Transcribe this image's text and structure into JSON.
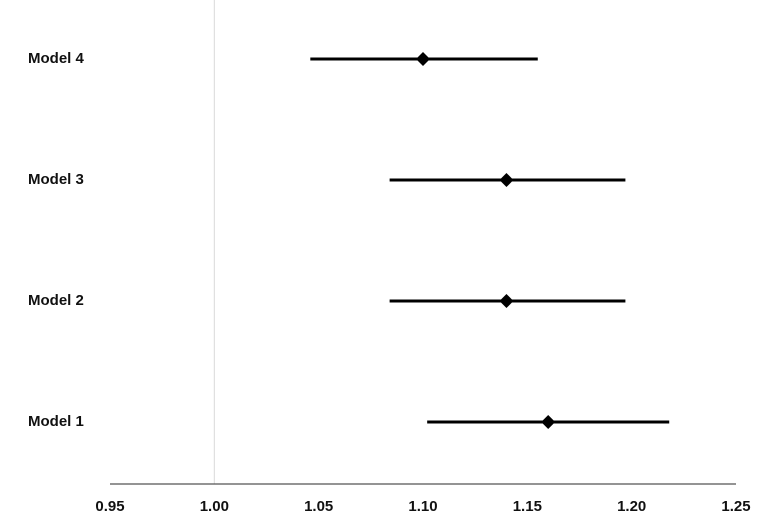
{
  "chart_data": {
    "type": "forest",
    "categories": [
      "Model 1",
      "Model 2",
      "Model 3",
      "Model 4"
    ],
    "values": [
      1.16,
      1.14,
      1.14,
      1.1
    ],
    "lower": [
      1.102,
      1.084,
      1.084,
      1.046
    ],
    "upper": [
      1.218,
      1.197,
      1.197,
      1.155
    ],
    "color": "#000000",
    "reference_line": 1,
    "xlim": [
      0.95,
      1.25
    ],
    "xticks": [
      0.95,
      {
        "value": 1,
        "label": "1.00"
      },
      1.05,
      {
        "value": 1.1,
        "label": "1.10"
      },
      1.15,
      {
        "value": 1.2,
        "label": "1.20"
      },
      1.25
    ]
  }
}
